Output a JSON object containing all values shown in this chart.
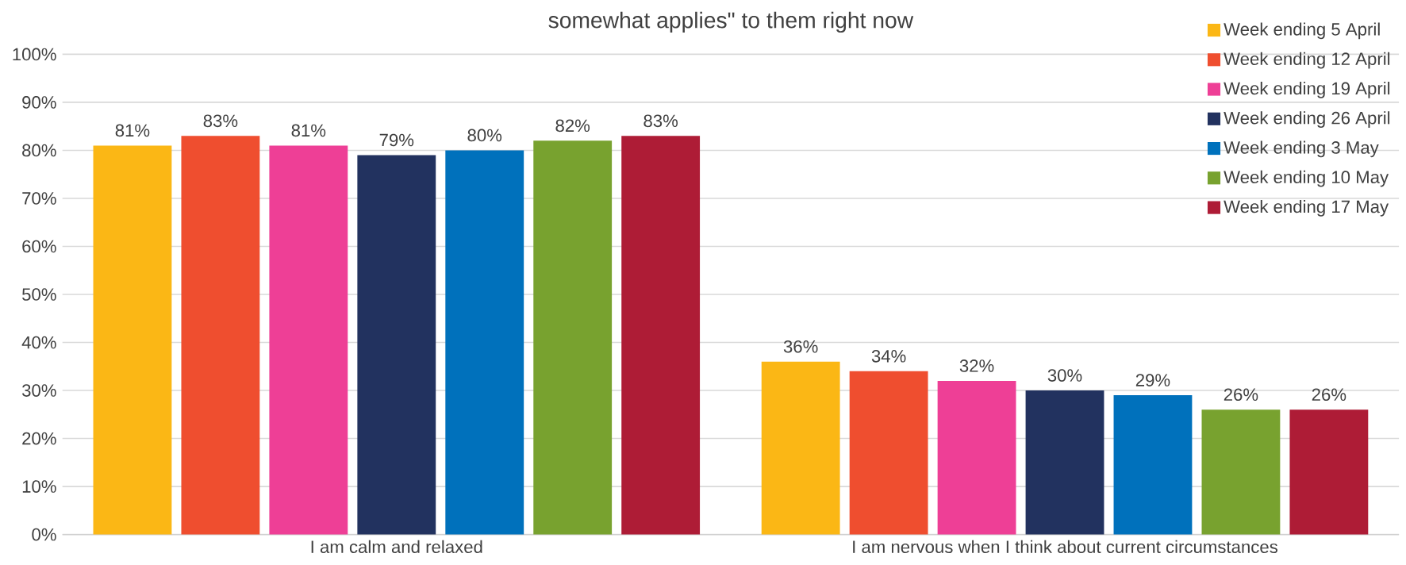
{
  "chart_data": {
    "type": "bar",
    "title": "somewhat applies\" to them right now",
    "categories": [
      "I am calm and relaxed",
      "I am nervous when I think about current circumstances"
    ],
    "series": [
      {
        "name": "Week ending 5 April",
        "color": "#fbb715",
        "values": [
          81,
          36
        ],
        "value_labels": [
          "81%",
          "36%"
        ]
      },
      {
        "name": "Week ending 12 April",
        "color": "#ef4e2f",
        "values": [
          83,
          34
        ],
        "value_labels": [
          "83%",
          "34%"
        ]
      },
      {
        "name": "Week ending 19 April",
        "color": "#ee3f96",
        "values": [
          81,
          32
        ],
        "value_labels": [
          "81%",
          "32%"
        ]
      },
      {
        "name": "Week ending 26 April",
        "color": "#22325f",
        "values": [
          79,
          30
        ],
        "value_labels": [
          "79%",
          "30%"
        ]
      },
      {
        "name": "Week ending 3 May",
        "color": "#0071bc",
        "values": [
          80,
          29
        ],
        "value_labels": [
          "80%",
          "29%"
        ]
      },
      {
        "name": "Week ending 10 May",
        "color": "#78a22f",
        "values": [
          82,
          26
        ],
        "value_labels": [
          "82%",
          "26%"
        ]
      },
      {
        "name": "Week ending 17 May",
        "color": "#ae1c36",
        "values": [
          83,
          26
        ],
        "value_labels": [
          "83%",
          "26%"
        ]
      }
    ],
    "ylim": [
      0,
      100
    ],
    "yticks": [
      {
        "value": 0,
        "label": "0%"
      },
      {
        "value": 10,
        "label": "10%"
      },
      {
        "value": 20,
        "label": "20%"
      },
      {
        "value": 30,
        "label": "30%"
      },
      {
        "value": 40,
        "label": "40%"
      },
      {
        "value": 50,
        "label": "50%"
      },
      {
        "value": 60,
        "label": "60%"
      },
      {
        "value": 70,
        "label": "70%"
      },
      {
        "value": 80,
        "label": "80%"
      },
      {
        "value": 90,
        "label": "90%"
      },
      {
        "value": 100,
        "label": "100%"
      }
    ],
    "grid": "y",
    "legend": "top right"
  }
}
